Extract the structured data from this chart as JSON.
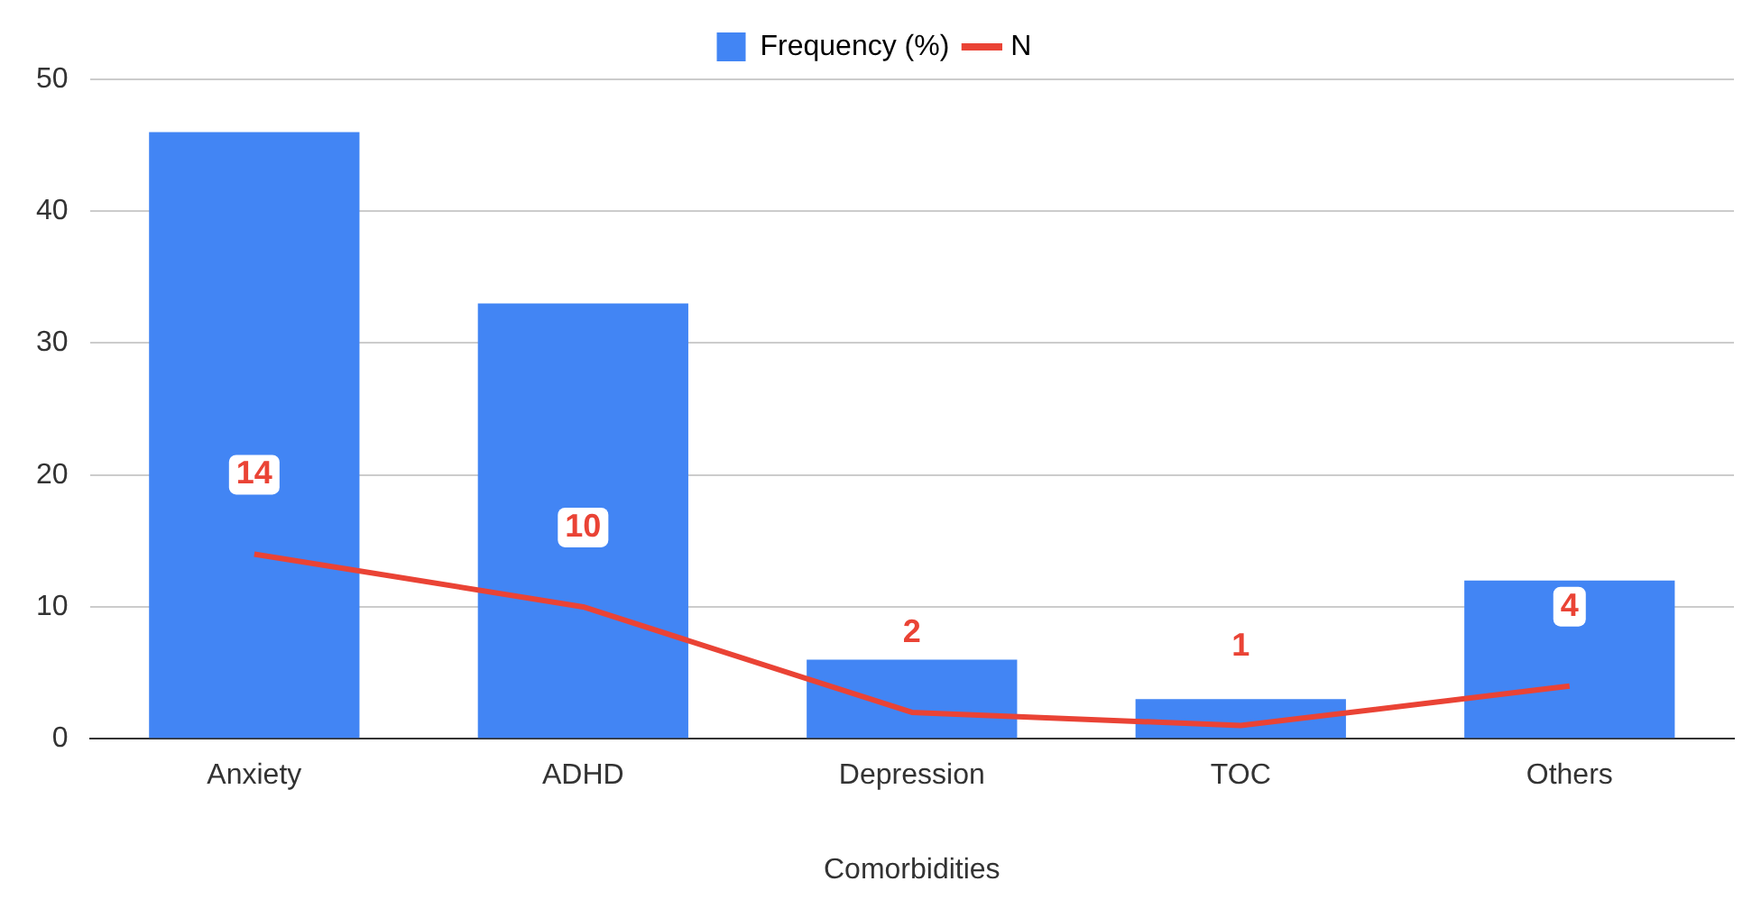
{
  "chart_data": {
    "type": "bar",
    "xlabel": "Comorbidities",
    "categories": [
      "Anxiety",
      "ADHD",
      "Depression",
      "TOC",
      "Others"
    ],
    "series": [
      {
        "name": "Frequency (%)",
        "color": "#4285f4",
        "values": [
          46,
          33,
          6,
          3,
          12
        ]
      },
      {
        "name": "N",
        "type": "line",
        "color": "#ea4335",
        "marker": "none",
        "values": [
          14,
          10,
          2,
          1,
          4
        ],
        "value_labels": [
          "14",
          "10",
          "2",
          "1",
          "4"
        ]
      }
    ],
    "ylim": [
      0,
      50
    ],
    "yticks": [
      0,
      10,
      20,
      30,
      40,
      50
    ],
    "grid": "y",
    "legend": "top"
  }
}
